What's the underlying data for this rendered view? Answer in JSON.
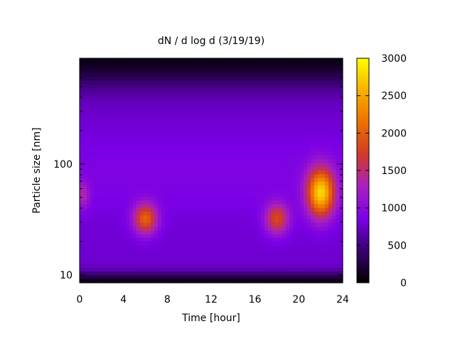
{
  "chart_data": {
    "type": "heatmap",
    "title": "dN / d log d (3/19/19)",
    "xlabel": "Time [hour]",
    "ylabel": "Particle size [nm]",
    "x_range": [
      0,
      24
    ],
    "y_range": [
      8.5,
      900
    ],
    "y_scale": "log",
    "x_ticks": [
      0,
      4,
      8,
      12,
      16,
      20,
      24
    ],
    "x_tick_labels": [
      "0",
      "4",
      "8",
      "12",
      "16",
      "20",
      "24"
    ],
    "y_ticks": [
      10,
      100
    ],
    "y_tick_labels": [
      "10",
      "100"
    ],
    "colorbar": {
      "range": [
        0,
        3000
      ],
      "ticks": [
        0,
        500,
        1000,
        1500,
        2000,
        2500,
        3000
      ],
      "tick_labels": [
        "0",
        "500",
        "1000",
        "1500",
        "2000",
        "2500",
        "3000"
      ],
      "colormap": [
        "#000000",
        "#3a0070",
        "#7a00e6",
        "#a820c0",
        "#d03a2a",
        "#ee7000",
        "#f8b000",
        "#ffff00"
      ]
    },
    "background_level": 780,
    "features": [
      {
        "time": 6.0,
        "size_nm": 32,
        "peak": 2000
      },
      {
        "time": 18.0,
        "size_nm": 32,
        "peak": 1800
      },
      {
        "time": 22.0,
        "size_nm": 55,
        "peak": 2700
      }
    ]
  }
}
